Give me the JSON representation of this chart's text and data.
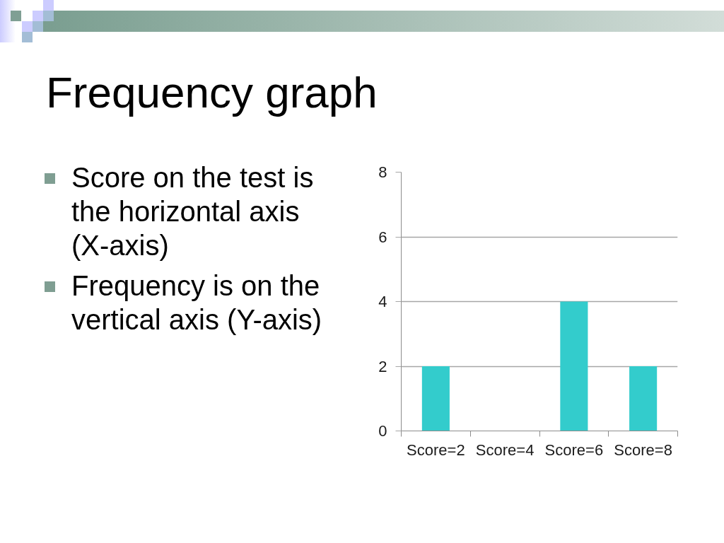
{
  "chart_data": {
    "type": "bar",
    "title": "Frequency graph",
    "annotations": [
      "Score on the test is the horizontal axis (X-axis)",
      "Frequency is on the vertical axis (Y-axis)"
    ],
    "categories": [
      "Score=2",
      "Score=4",
      "Score=6",
      "Score=8"
    ],
    "values": [
      2,
      0,
      4,
      2
    ],
    "color": "#33cccc",
    "ylim": [
      0,
      8
    ],
    "yticks": [
      0,
      2,
      4,
      6,
      8
    ],
    "grid": "y"
  }
}
